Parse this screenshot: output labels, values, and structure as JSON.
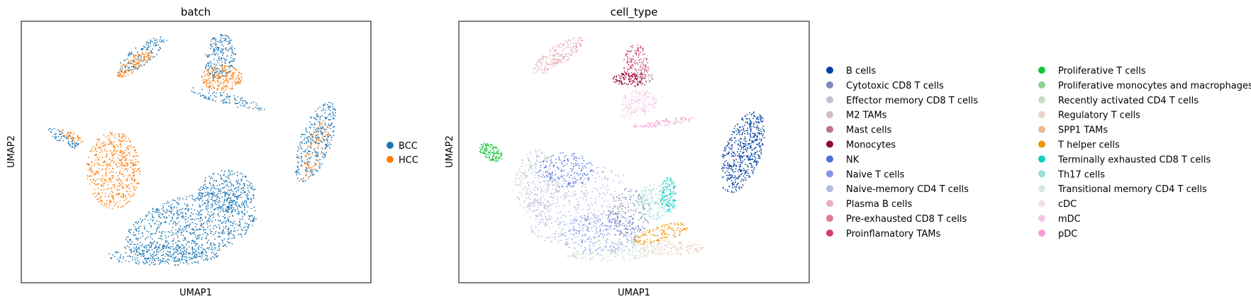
{
  "chart_data": [
    {
      "type": "scatter",
      "title": "batch",
      "xlabel": "UMAP1",
      "ylabel": "UMAP2",
      "grid": false,
      "ticks": false,
      "legend_position": "right",
      "series": [
        {
          "name": "BCC",
          "color": "#1f77b4"
        },
        {
          "name": "HCC",
          "color": "#ff7f0e"
        }
      ]
    },
    {
      "type": "scatter",
      "title": "cell_type",
      "xlabel": "UMAP1",
      "ylabel": "UMAP2",
      "grid": false,
      "ticks": false,
      "legend_position": "right",
      "series": [
        {
          "name": "B cells",
          "color": "#023fa5"
        },
        {
          "name": "Cytotoxic CD8 T cells",
          "color": "#7d87b9"
        },
        {
          "name": "Effector memory CD8 T cells",
          "color": "#bec1d4"
        },
        {
          "name": "M2 TAMs",
          "color": "#d6bcc0"
        },
        {
          "name": "Mast cells",
          "color": "#bb7784"
        },
        {
          "name": "Monocytes",
          "color": "#8e063b"
        },
        {
          "name": "NK",
          "color": "#4a6fe3"
        },
        {
          "name": "Naive T cells",
          "color": "#8595e1"
        },
        {
          "name": "Naive-memory CD4 T cells",
          "color": "#b5bbe3"
        },
        {
          "name": "Plasma B cells",
          "color": "#e6afb9"
        },
        {
          "name": "Pre-exhausted CD8 T cells",
          "color": "#e07b91"
        },
        {
          "name": "Proinflamatory TAMs",
          "color": "#d33f6a"
        },
        {
          "name": "Proliferative T cells",
          "color": "#11c638"
        },
        {
          "name": "Proliferative monocytes and macrophages",
          "color": "#8dd593"
        },
        {
          "name": "Recently activated CD4 T cells",
          "color": "#c6dec7"
        },
        {
          "name": "Regulatory T cells",
          "color": "#ead3c6"
        },
        {
          "name": "SPP1 TAMs",
          "color": "#f0b98d"
        },
        {
          "name": "T helper cells",
          "color": "#ef9708"
        },
        {
          "name": "Terminally exhausted CD8 T cells",
          "color": "#0fcfc0"
        },
        {
          "name": "Th17 cells",
          "color": "#9cded6"
        },
        {
          "name": "Transitional memory CD4 T cells",
          "color": "#d5eae7"
        },
        {
          "name": "cDC",
          "color": "#f3e1eb"
        },
        {
          "name": "mDC",
          "color": "#f6c4e1"
        },
        {
          "name": "pDC",
          "color": "#f79cd4"
        }
      ]
    }
  ]
}
